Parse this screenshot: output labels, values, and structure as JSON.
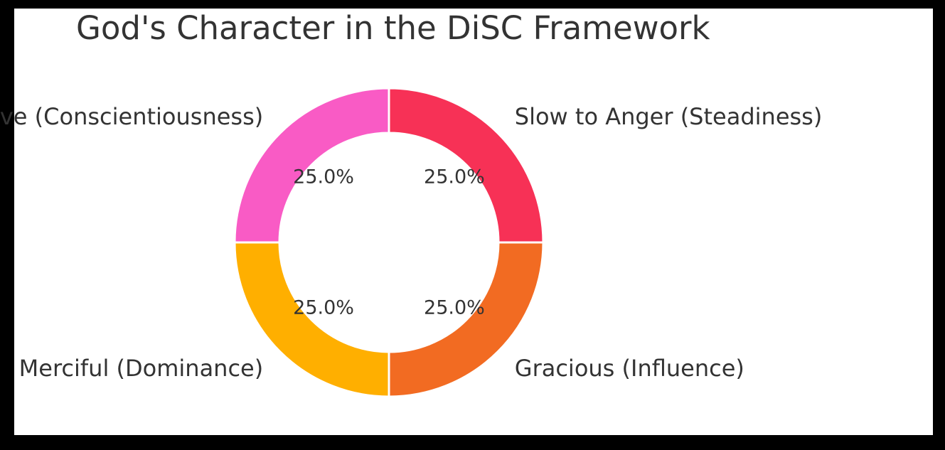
{
  "chart_data": {
    "type": "pie",
    "variant": "donut",
    "title": "God's Character in the DiSC Framework",
    "slices": [
      {
        "label": "Steadfast Love (Conscientiousness)",
        "value": 25.0,
        "pct_label": "25.0%",
        "color": "#F95BC5"
      },
      {
        "label": "Merciful (Dominance)",
        "value": 25.0,
        "pct_label": "25.0%",
        "color": "#FFAF00"
      },
      {
        "label": "Gracious (Influence)",
        "value": 25.0,
        "pct_label": "25.0%",
        "color": "#F26B22"
      },
      {
        "label": "Slow to Anger (Steadiness)",
        "value": 25.0,
        "pct_label": "25.0%",
        "color": "#F73156"
      }
    ]
  }
}
